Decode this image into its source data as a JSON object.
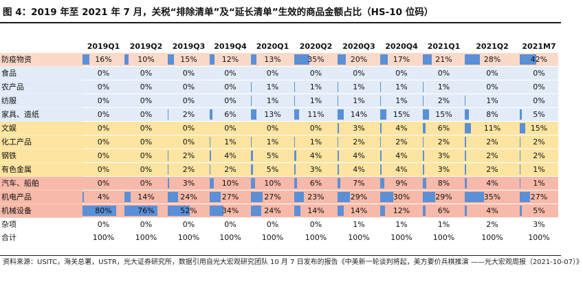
{
  "title": "图 4：2019 年至 2021 年 7 月，关税“排除清单”及“延长清单”生效的商品金额占比（HS-10 位码）",
  "columns": [
    "2019Q1",
    "2019Q2",
    "2019Q3",
    "2019Q4",
    "2020Q1",
    "2020Q2",
    "2020Q3",
    "2020Q4",
    "2021Q1",
    "2021Q2",
    "2021M7"
  ],
  "colors": {
    "bar": "#5b8fd6",
    "group_a": "#fbd9c9",
    "group_b": "#e1ecf8",
    "group_c": "#fde4a0",
    "group_d": "#f7b9a9"
  },
  "rows": [
    {
      "label": "防疫物资",
      "group": "g-a",
      "bars": true,
      "values": [
        "16%",
        "10%",
        "15%",
        "12%",
        "13%",
        "35%",
        "20%",
        "17%",
        "21%",
        "28%",
        "42%"
      ]
    },
    {
      "label": "食品",
      "group": "g-b",
      "bars": true,
      "values": [
        "0%",
        "0%",
        "0%",
        "0%",
        "0%",
        "0%",
        "0%",
        "0%",
        "0%",
        "0%",
        "0%"
      ]
    },
    {
      "label": "农产品",
      "group": "g-b",
      "bars": true,
      "values": [
        "0%",
        "0%",
        "0%",
        "0%",
        "1%",
        "1%",
        "1%",
        "1%",
        "1%",
        "0%",
        "0%"
      ]
    },
    {
      "label": "纺服",
      "group": "g-b",
      "bars": true,
      "values": [
        "0%",
        "0%",
        "0%",
        "0%",
        "1%",
        "1%",
        "1%",
        "1%",
        "2%",
        "1%",
        "0%"
      ]
    },
    {
      "label": "家具、造纸",
      "group": "g-b",
      "bars": true,
      "values": [
        "0%",
        "0%",
        "2%",
        "6%",
        "13%",
        "11%",
        "14%",
        "15%",
        "15%",
        "8%",
        "5%"
      ]
    },
    {
      "label": "文娱",
      "group": "g-c",
      "bars": true,
      "values": [
        "0%",
        "0%",
        "0%",
        "0%",
        "0%",
        "0%",
        "3%",
        "4%",
        "6%",
        "11%",
        "15%"
      ]
    },
    {
      "label": "化工产品",
      "group": "g-c",
      "bars": true,
      "values": [
        "0%",
        "0%",
        "0%",
        "1%",
        "1%",
        "1%",
        "2%",
        "2%",
        "2%",
        "2%",
        "2%"
      ]
    },
    {
      "label": "钢铁",
      "group": "g-c",
      "bars": true,
      "values": [
        "0%",
        "0%",
        "2%",
        "4%",
        "5%",
        "4%",
        "4%",
        "4%",
        "3%",
        "2%",
        "2%"
      ]
    },
    {
      "label": "有色金属",
      "group": "g-c",
      "bars": true,
      "values": [
        "0%",
        "0%",
        "2%",
        "2%",
        "5%",
        "3%",
        "4%",
        "4%",
        "3%",
        "2%",
        "1%"
      ]
    },
    {
      "label": "汽车、船舶",
      "group": "g-d",
      "bars": true,
      "values": [
        "0%",
        "0%",
        "3%",
        "10%",
        "10%",
        "6%",
        "7%",
        "9%",
        "8%",
        "4%",
        "1%"
      ]
    },
    {
      "label": "机电产品",
      "group": "g-d",
      "bars": true,
      "values": [
        "4%",
        "14%",
        "24%",
        "27%",
        "27%",
        "23%",
        "29%",
        "30%",
        "29%",
        "35%",
        "27%"
      ]
    },
    {
      "label": "机械设备",
      "group": "g-d",
      "bars": true,
      "values": [
        "80%",
        "76%",
        "52%",
        "34%",
        "24%",
        "14%",
        "14%",
        "12%",
        "6%",
        "4%",
        "5%"
      ]
    },
    {
      "label": "杂项",
      "group": "g-e",
      "bars": false,
      "values": [
        "0%",
        "0%",
        "0%",
        "0%",
        "0%",
        "0%",
        "1%",
        "1%",
        "1%",
        "2%",
        "3%"
      ]
    },
    {
      "label": "合计",
      "group": "g-e",
      "bars": false,
      "values": [
        "100%",
        "100%",
        "100%",
        "100%",
        "100%",
        "100%",
        "100%",
        "100%",
        "100%",
        "100%",
        "100%"
      ]
    }
  ],
  "source": "资料来源：USITC，海关总署，USTR，光大证券研究所，数据引用自光大宏观研究团队 10 月 7 日发布的报告《中美新一轮谈判将起，美方要价兵棋推演 ——光大宏观周报（2021-10-07）》"
}
